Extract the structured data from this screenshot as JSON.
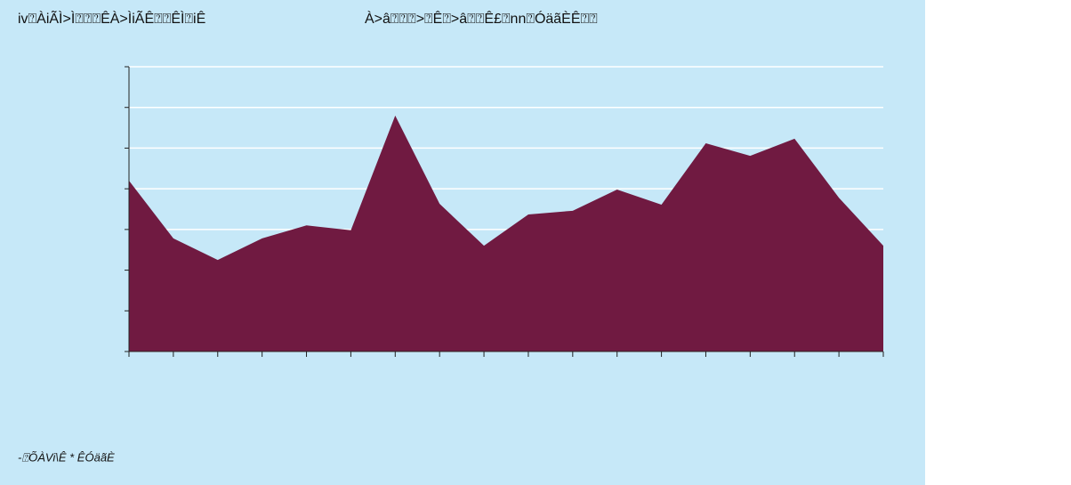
{
  "chart_data": {
    "type": "area",
    "title": "iv⍰ÀiÃÌ>Ì⍰⍰⍰ÊÀ>ÌiÃÊ⍰⍰ÊÌ⍰iÊ",
    "subtitle": "À>â⍰⍰⍰>⍰Ê⍰>â⍰⍰Ê£⍰nn⍰ÓäãÈÊ⍰⍰",
    "source": "-⍰ÕÀVi\\Ê * ÊÓäãÈ",
    "categories": [
      null,
      null,
      null,
      null,
      null,
      null,
      null,
      null,
      null,
      null,
      null,
      null,
      null,
      null,
      null,
      null,
      null,
      null
    ],
    "values": [
      4.2,
      2.78,
      2.25,
      2.78,
      3.1,
      2.98,
      5.8,
      3.63,
      2.6,
      3.37,
      3.46,
      3.98,
      3.61,
      5.12,
      4.81,
      5.23,
      3.78,
      2.6
    ],
    "color": "#701a41",
    "ylim": [
      0,
      7
    ],
    "yticks": [
      0,
      1,
      2,
      3,
      4,
      5,
      6,
      7
    ],
    "grid": true
  }
}
